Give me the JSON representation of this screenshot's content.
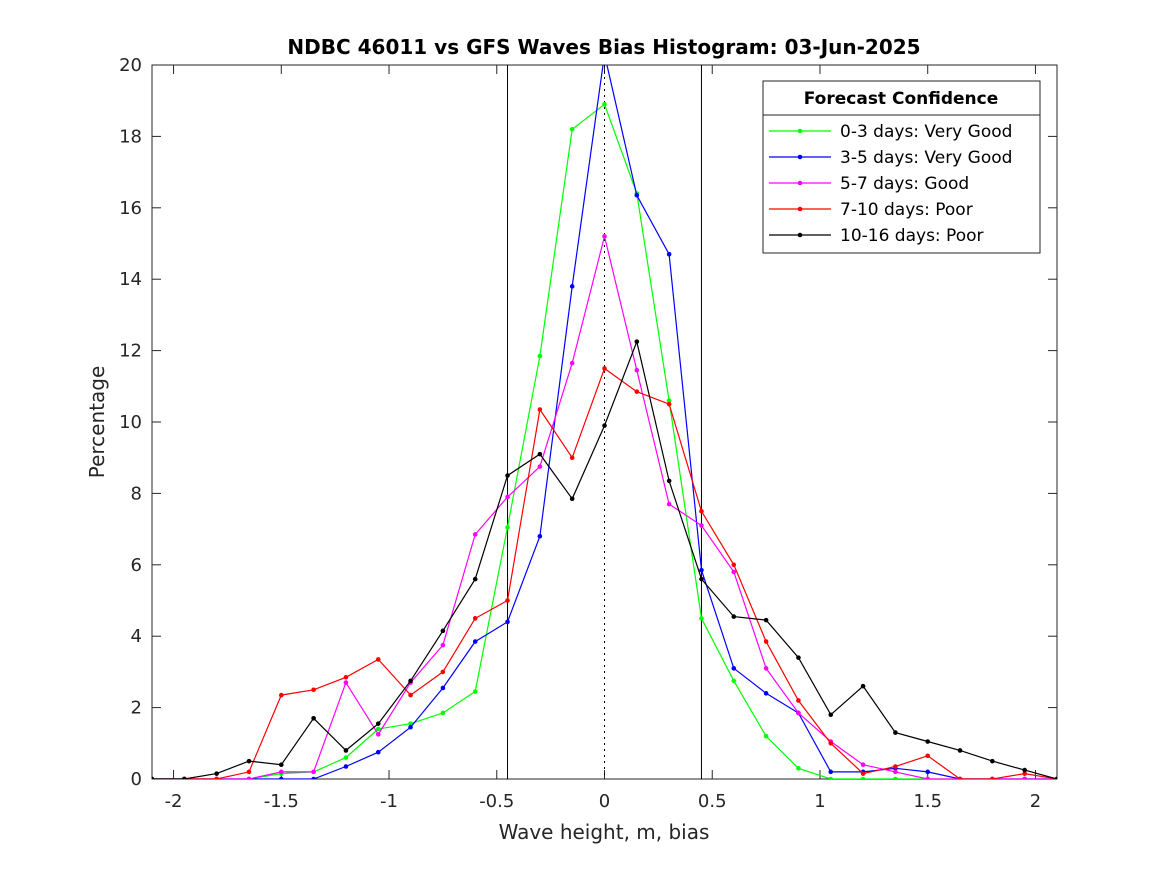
{
  "chart_data": {
    "type": "line",
    "title": "NDBC 46011 vs GFS Waves Bias Histogram: 03-Jun-2025",
    "xlabel": "Wave height, m, bias",
    "ylabel": "Percentage",
    "xlim": [
      -2.1,
      2.1
    ],
    "ylim": [
      0,
      20
    ],
    "xticks": [
      -2,
      -1.5,
      -1,
      -0.5,
      0,
      0.5,
      1,
      1.5,
      2
    ],
    "xtick_labels": [
      "-2",
      "-1.5",
      "-1",
      "-0.5",
      "0",
      "0.5",
      "1",
      "1.5",
      "2"
    ],
    "yticks": [
      0,
      2,
      4,
      6,
      8,
      10,
      12,
      14,
      16,
      18,
      20
    ],
    "ytick_labels": [
      "0",
      "2",
      "4",
      "6",
      "8",
      "10",
      "12",
      "14",
      "16",
      "18",
      "20"
    ],
    "grid": false,
    "legend_title": "Forecast Confidence",
    "legend_position": "top-right",
    "reference_lines": {
      "vertical_solid": [
        -0.45,
        0.45
      ],
      "vertical_dotted": [
        0
      ]
    },
    "x": [
      -2.1,
      -1.95,
      -1.8,
      -1.65,
      -1.5,
      -1.35,
      -1.2,
      -1.05,
      -0.9,
      -0.75,
      -0.6,
      -0.45,
      -0.3,
      -0.15,
      0,
      0.15,
      0.3,
      0.45,
      0.6,
      0.75,
      0.9,
      1.05,
      1.2,
      1.35,
      1.5,
      1.65,
      1.8,
      1.95,
      2.1
    ],
    "series": [
      {
        "name": "0-3 days: Very Good",
        "color": "#00ff00",
        "values": [
          0,
          0,
          0,
          0,
          0.15,
          0.2,
          0.6,
          1.4,
          1.55,
          1.85,
          2.45,
          7.05,
          11.85,
          18.2,
          18.9,
          16.4,
          10.6,
          4.5,
          2.75,
          1.2,
          0.3,
          0,
          0,
          0,
          0,
          0,
          0,
          0,
          0
        ]
      },
      {
        "name": "3-5 days: Very Good",
        "color": "#0000ff",
        "values": [
          0,
          0,
          0,
          0,
          0,
          0,
          0.35,
          0.75,
          1.45,
          2.55,
          3.85,
          4.4,
          6.8,
          13.8,
          20.3,
          16.35,
          14.7,
          5.85,
          3.1,
          2.4,
          1.85,
          0.2,
          0.2,
          0.3,
          0.2,
          0,
          0,
          0,
          0
        ]
      },
      {
        "name": "5-7 days: Good",
        "color": "#ff00ff",
        "values": [
          0,
          0,
          0,
          0,
          0.2,
          0.2,
          2.7,
          1.25,
          2.7,
          3.75,
          6.85,
          7.9,
          8.75,
          11.65,
          15.2,
          11.45,
          7.7,
          7.1,
          5.8,
          3.1,
          1.85,
          1.05,
          0.4,
          0.2,
          0,
          0,
          0,
          0,
          0
        ]
      },
      {
        "name": "7-10 days: Poor",
        "color": "#ff0000",
        "values": [
          0,
          0,
          0,
          0.2,
          2.35,
          2.5,
          2.85,
          3.35,
          2.35,
          3.0,
          4.5,
          5.0,
          10.35,
          9.0,
          11.5,
          10.85,
          10.5,
          7.5,
          6.0,
          3.85,
          2.2,
          1.0,
          0.15,
          0.35,
          0.65,
          0,
          0,
          0.15,
          0
        ]
      },
      {
        "name": "10-16 days: Poor",
        "color": "#000000",
        "values": [
          0,
          0,
          0.15,
          0.5,
          0.4,
          1.7,
          0.8,
          1.55,
          2.75,
          4.15,
          5.6,
          8.5,
          9.1,
          7.85,
          9.9,
          12.25,
          8.35,
          5.6,
          4.55,
          4.45,
          3.4,
          1.8,
          2.6,
          1.3,
          1.05,
          0.8,
          0.5,
          0.25,
          0
        ]
      }
    ]
  }
}
